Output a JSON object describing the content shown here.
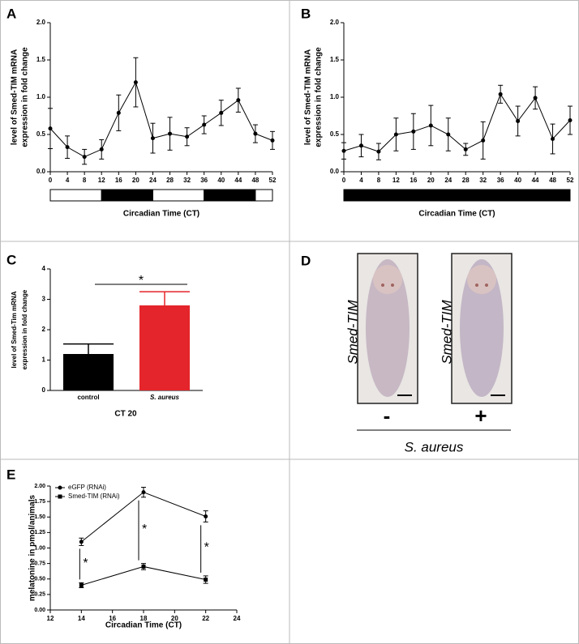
{
  "chart_data": [
    {
      "type": "line",
      "panel": "A",
      "ylabel": [
        "level of Smed-TIM mRNA",
        "expression in fold change"
      ],
      "xlabel": "Circadian Time (CT)",
      "x": [
        0,
        4,
        8,
        12,
        16,
        20,
        24,
        28,
        32,
        36,
        40,
        44,
        48,
        52
      ],
      "series": [
        {
          "color": "#000000",
          "marker": "circle",
          "values": [
            0.58,
            0.33,
            0.2,
            0.3,
            0.79,
            1.2,
            0.45,
            0.51,
            0.47,
            0.63,
            0.79,
            0.96,
            0.51,
            0.42
          ],
          "errors": [
            0.27,
            0.15,
            0.1,
            0.13,
            0.24,
            0.33,
            0.2,
            0.22,
            0.12,
            0.12,
            0.17,
            0.16,
            0.12,
            0.12
          ]
        }
      ],
      "xlim": [
        0,
        52
      ],
      "xticks": [
        0,
        4,
        8,
        12,
        16,
        20,
        24,
        28,
        32,
        36,
        40,
        44,
        48,
        52
      ],
      "ylim": [
        0,
        2
      ],
      "yticks": [
        {
          "value": 0,
          "label": "0.0"
        },
        {
          "value": 0.5,
          "label": "0.5"
        },
        {
          "value": 1,
          "label": "1.0"
        },
        {
          "value": 1.5,
          "label": "1.5"
        },
        {
          "value": 2,
          "label": "2.0"
        }
      ],
      "phase_bounds": [
        0,
        12,
        24,
        36,
        48,
        52
      ],
      "phase_dark": [
        false,
        true,
        false,
        true,
        false
      ]
    },
    {
      "type": "line",
      "panel": "B",
      "ylabel": [
        "level of Smed-TIM mRNA",
        "expression in fold change"
      ],
      "xlabel": "Circadian Time (CT)",
      "x": [
        0,
        4,
        8,
        12,
        16,
        20,
        24,
        28,
        32,
        36,
        40,
        44,
        48,
        52
      ],
      "series": [
        {
          "color": "#000000",
          "marker": "circle",
          "values": [
            0.28,
            0.35,
            0.27,
            0.5,
            0.54,
            0.62,
            0.5,
            0.3,
            0.42,
            1.04,
            0.68,
            0.99,
            0.44,
            0.69
          ],
          "errors": [
            0.11,
            0.15,
            0.11,
            0.22,
            0.24,
            0.27,
            0.22,
            0.08,
            0.25,
            0.12,
            0.2,
            0.15,
            0.2,
            0.19
          ]
        }
      ],
      "xlim": [
        0,
        52
      ],
      "xticks": [
        0,
        4,
        8,
        12,
        16,
        20,
        24,
        28,
        32,
        36,
        40,
        44,
        48,
        52
      ],
      "ylim": [
        0,
        2
      ],
      "yticks": [
        {
          "value": 0,
          "label": "0.0"
        },
        {
          "value": 0.5,
          "label": "0.5"
        },
        {
          "value": 1,
          "label": "1.0"
        },
        {
          "value": 1.5,
          "label": "1.5"
        },
        {
          "value": 2,
          "label": "2.0"
        }
      ],
      "phase_bounds": [
        0,
        52
      ],
      "phase_dark": [
        true
      ]
    },
    {
      "type": "bar",
      "panel": "C",
      "ylabel": [
        "level of Smed-Tim mRNA",
        "expression in fold change"
      ],
      "xlabel": "CT 20",
      "categories": [
        "control",
        "S. aureus"
      ],
      "values": [
        1.2,
        2.8
      ],
      "errors": [
        0.33,
        0.45
      ],
      "colors": [
        "#000000",
        "#e4252b"
      ],
      "ylim": [
        0,
        4
      ],
      "yticks": [
        0,
        1,
        2,
        3,
        4
      ],
      "significance_label": "*"
    },
    {
      "type": "line",
      "panel": "E",
      "ylabel": [
        "melatonine in pmol/animals"
      ],
      "xlabel": "Circadian Time (CT)",
      "x": [
        14,
        18,
        22
      ],
      "series": [
        {
          "name": "eGFP (RNAi)",
          "color": "#000000",
          "marker": "circle",
          "values": [
            1.1,
            1.9,
            1.51
          ],
          "errors": [
            0.06,
            0.08,
            0.09
          ]
        },
        {
          "name": "Smed-TIM (RNAi)",
          "color": "#000000",
          "marker": "square",
          "values": [
            0.4,
            0.7,
            0.49
          ],
          "errors": [
            0.04,
            0.05,
            0.06
          ]
        }
      ],
      "xlim": [
        12,
        24
      ],
      "xticks": [
        12,
        14,
        16,
        18,
        20,
        22,
        24
      ],
      "ylim": [
        0,
        2
      ],
      "yticks": [
        {
          "value": 0,
          "label": "0.00"
        },
        {
          "value": 0.25,
          "label": "0.25"
        },
        {
          "value": 0.5,
          "label": "0.50"
        },
        {
          "value": 0.75,
          "label": "0.75"
        },
        {
          "value": 1,
          "label": "1.00"
        },
        {
          "value": 1.25,
          "label": "1.25"
        },
        {
          "value": 1.5,
          "label": "1.50"
        },
        {
          "value": 1.75,
          "label": "1.75"
        },
        {
          "value": 2,
          "label": "2.00"
        }
      ],
      "legend": "top-left",
      "significance_labels": [
        "*",
        "*",
        "*"
      ]
    }
  ],
  "panel_d": {
    "panel": "D",
    "image_labels": [
      "Smed-TIM",
      "Smed-TIM"
    ],
    "treatment_signs": [
      "-",
      "+"
    ],
    "condition": "S. aureus"
  }
}
